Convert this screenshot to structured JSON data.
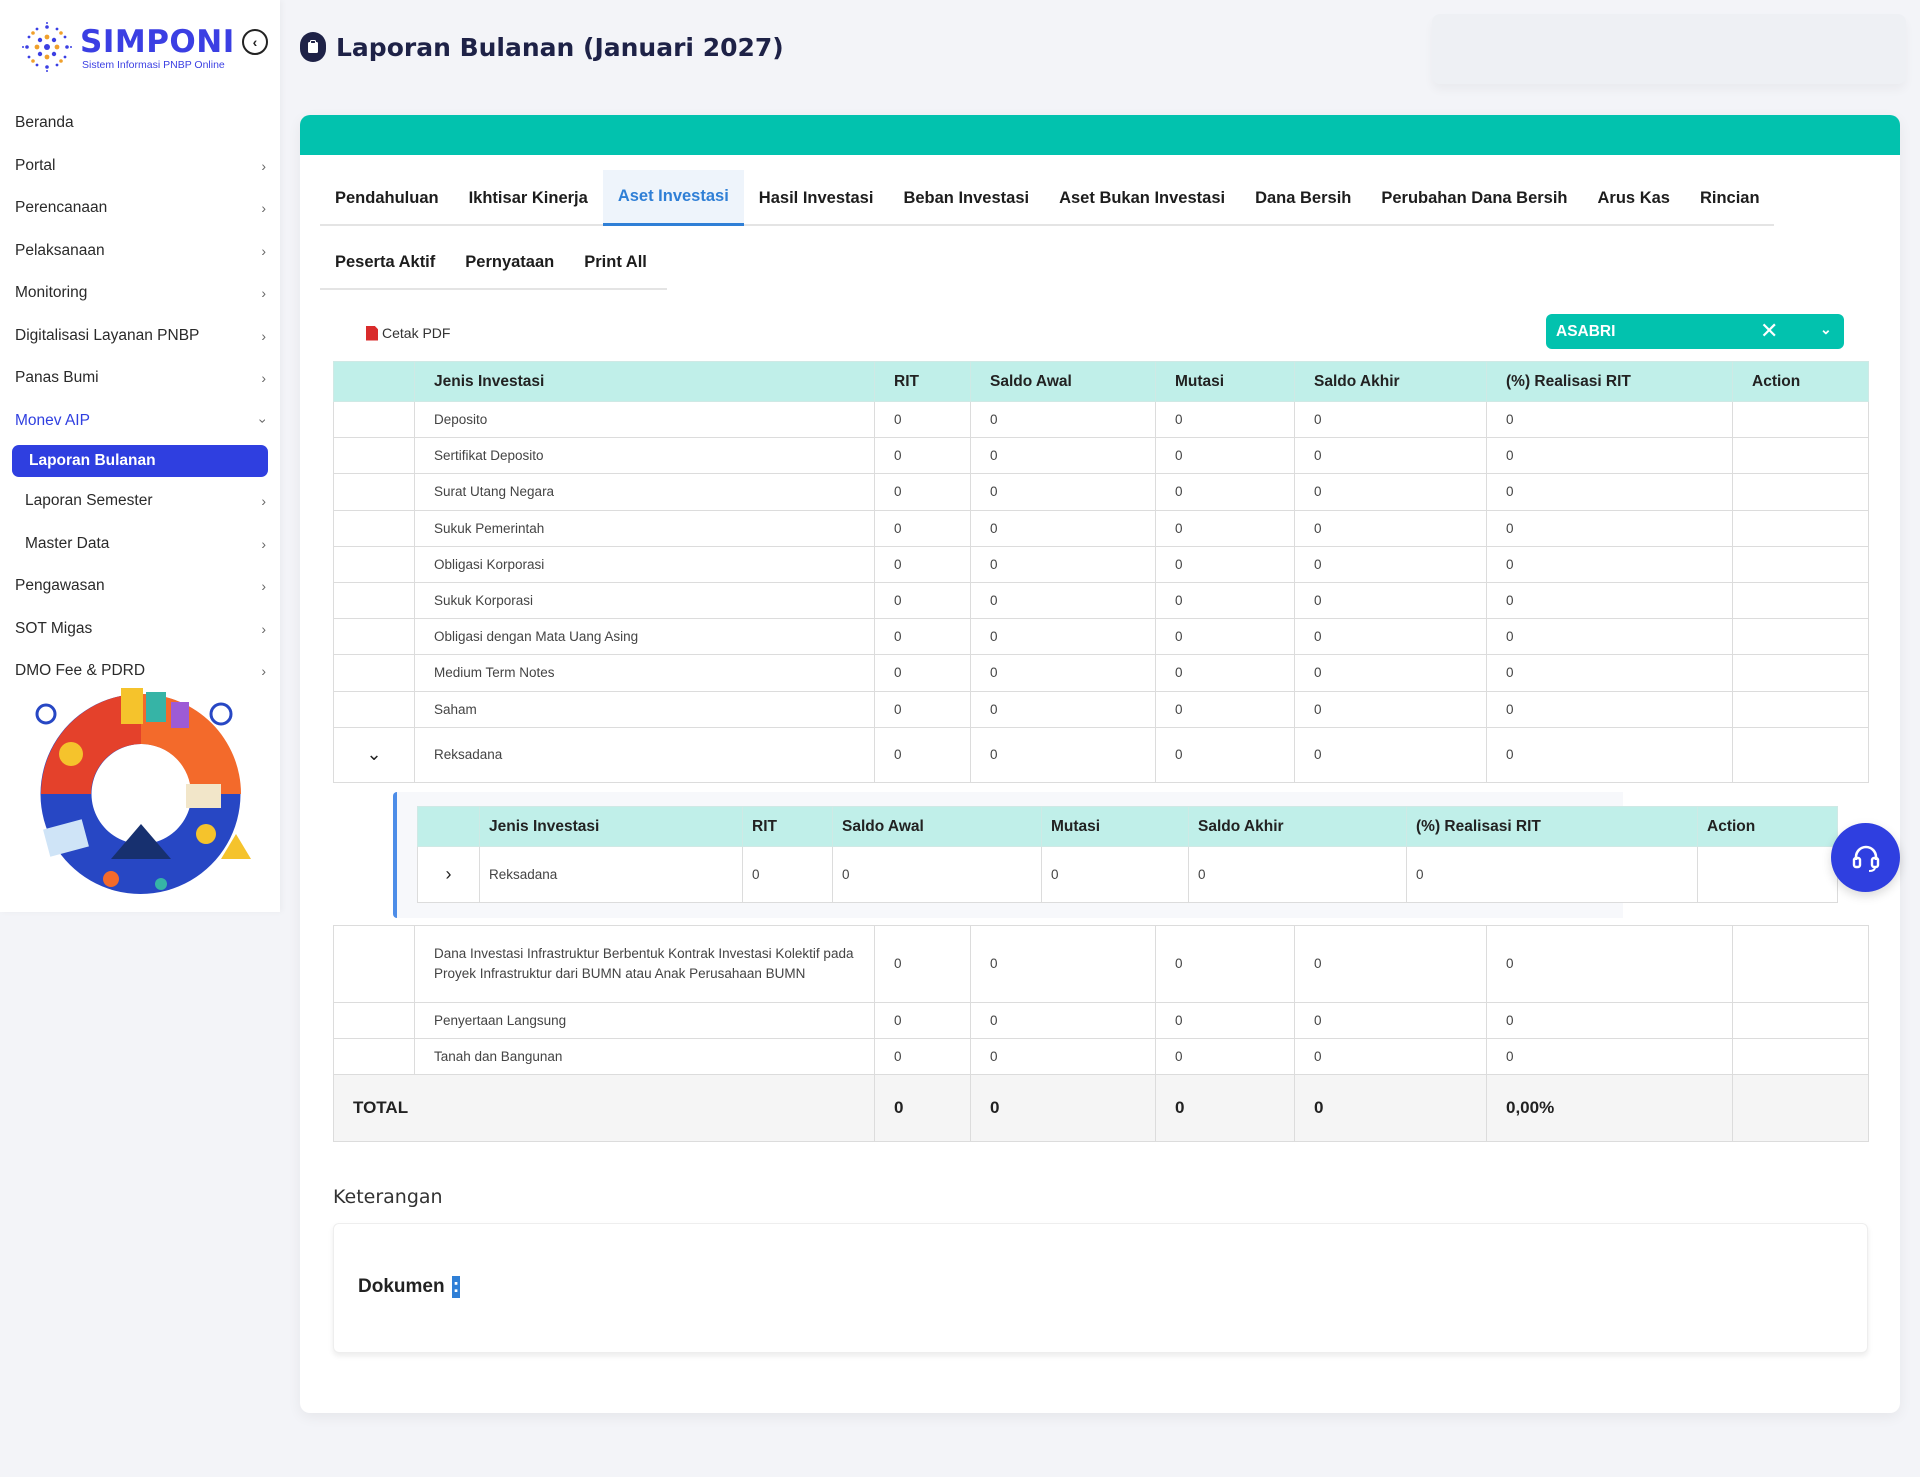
{
  "logo": {
    "name": "SIMPONI",
    "subtitle": "Sistem Informasi PNBP Online"
  },
  "page": {
    "title": "Laporan Bulanan (Januari 2027)"
  },
  "sidebar": {
    "items": [
      {
        "label": "Beranda"
      },
      {
        "label": "Portal"
      },
      {
        "label": "Perencanaan"
      },
      {
        "label": "Pelaksanaan"
      },
      {
        "label": "Monitoring"
      },
      {
        "label": "Digitalisasi Layanan PNBP"
      },
      {
        "label": "Panas Bumi"
      },
      {
        "label": "Monev AIP"
      },
      {
        "label": "Laporan Bulanan"
      },
      {
        "label": "Laporan Semester"
      },
      {
        "label": "Master Data"
      },
      {
        "label": "Pengawasan"
      },
      {
        "label": "SOT Migas"
      },
      {
        "label": "DMO Fee & PDRD"
      }
    ]
  },
  "tabs_row1": [
    "Pendahuluan",
    "Ikhtisar Kinerja",
    "Aset Investasi",
    "Hasil Investasi",
    "Beban Investasi",
    "Aset Bukan Investasi",
    "Dana Bersih",
    "Perubahan Dana Bersih",
    "Arus Kas",
    "Rincian"
  ],
  "tabs_row2": [
    "Peserta Aktif",
    "Pernyataan",
    "Print All"
  ],
  "active_tab": "Aset Investasi",
  "toolbar": {
    "cetak_pdf": "Cetak PDF",
    "select_value": "ASABRI"
  },
  "table": {
    "headers": [
      "Jenis Investasi",
      "RIT",
      "Saldo Awal",
      "Mutasi",
      "Saldo Akhir",
      "(%) Realisasi RIT",
      "Action"
    ],
    "rows_top": [
      [
        "Deposito",
        "0",
        "0",
        "0",
        "0",
        "0"
      ],
      [
        "Sertifikat Deposito",
        "0",
        "0",
        "0",
        "0",
        "0"
      ],
      [
        "Surat Utang Negara",
        "0",
        "0",
        "0",
        "0",
        "0"
      ],
      [
        "Sukuk Pemerintah",
        "0",
        "0",
        "0",
        "0",
        "0"
      ],
      [
        "Obligasi Korporasi",
        "0",
        "0",
        "0",
        "0",
        "0"
      ],
      [
        "Sukuk Korporasi",
        "0",
        "0",
        "0",
        "0",
        "0"
      ],
      [
        "Obligasi dengan Mata Uang Asing",
        "0",
        "0",
        "0",
        "0",
        "0"
      ],
      [
        "Medium Term Notes",
        "0",
        "0",
        "0",
        "0",
        "0"
      ],
      [
        "Saham",
        "0",
        "0",
        "0",
        "0",
        "0"
      ]
    ],
    "expanded_row": [
      "Reksadana",
      "0",
      "0",
      "0",
      "0",
      "0"
    ],
    "rows_bottom": [
      [
        "Dana Investasi Infrastruktur Berbentuk Kontrak Investasi Kolektif pada Proyek Infrastruktur dari BUMN atau Anak Perusahaan BUMN",
        "0",
        "0",
        "0",
        "0",
        "0"
      ],
      [
        "Penyertaan Langsung",
        "0",
        "0",
        "0",
        "0",
        "0"
      ],
      [
        "Tanah dan Bangunan",
        "0",
        "0",
        "0",
        "0",
        "0"
      ]
    ],
    "total": [
      "TOTAL",
      "0",
      "0",
      "0",
      "0",
      "0,00%"
    ]
  },
  "nested_table": {
    "headers": [
      "Jenis Investasi",
      "RIT",
      "Saldo Awal",
      "Mutasi",
      "Saldo Akhir",
      "(%) Realisasi RIT",
      "Action"
    ],
    "row": [
      "Reksadana",
      "0",
      "0",
      "0",
      "0",
      "0"
    ]
  },
  "keterangan": {
    "heading": "Keterangan",
    "dokumen_label": "Dokumen",
    "dokumen_colon": ":"
  },
  "colors": {
    "accent": "#02c2ae",
    "primary": "#2f3fe0",
    "header_bg": "#c0efe9",
    "active_tab": "#2f7fd6"
  },
  "icons": {
    "collapse": "chevron-left-circle-icon",
    "title": "clipboard-icon",
    "pdf": "pdf-icon",
    "help": "headset-icon"
  }
}
